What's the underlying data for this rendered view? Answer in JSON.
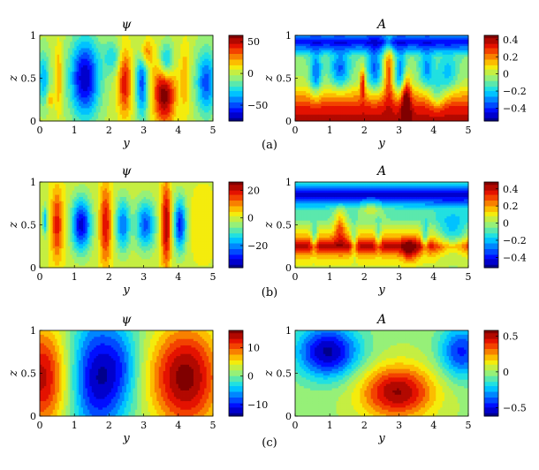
{
  "colors": {
    "blue": "#1010d8",
    "cyan": "#20d8e0",
    "green": "#b8f060",
    "yellow": "#f8f000",
    "orange": "#f89010",
    "red": "#e01010",
    "darkred": "#800000"
  },
  "chart_data": [
    {
      "type": "heatmap",
      "panel": "(a)",
      "field": "psi",
      "title": "ψ",
      "caption": "(a)",
      "xlabel": "y",
      "ylabel": "z",
      "xlim": [
        0,
        5
      ],
      "ylim": [
        0,
        1
      ],
      "xticks": [
        "0",
        "1",
        "2",
        "3",
        "4",
        "5"
      ],
      "yticks": [
        "0",
        "0.5",
        "1"
      ],
      "colorbar": {
        "range": [
          -75,
          60
        ],
        "ticks": [
          "50",
          "0",
          "−50"
        ],
        "tick_values": [
          50,
          0,
          -50
        ]
      },
      "blobs": [
        {
          "y": 0.1,
          "z": 0.5,
          "amp": -35,
          "sy": 0.12,
          "sz": 0.22
        },
        {
          "y": 0.3,
          "z": 0.25,
          "amp": 25,
          "sy": 0.06,
          "sz": 0.06
        },
        {
          "y": 0.55,
          "z": 0.5,
          "amp": 25,
          "sy": 0.08,
          "sz": 0.28
        },
        {
          "y": 1.3,
          "z": 0.5,
          "amp": -70,
          "sy": 0.3,
          "sz": 0.32
        },
        {
          "y": 2.1,
          "z": 0.75,
          "amp": -25,
          "sy": 0.18,
          "sz": 0.14
        },
        {
          "y": 2.45,
          "z": 0.45,
          "amp": 45,
          "sy": 0.14,
          "sz": 0.28
        },
        {
          "y": 2.95,
          "z": 0.45,
          "amp": -50,
          "sy": 0.12,
          "sz": 0.3
        },
        {
          "y": 3.05,
          "z": 0.8,
          "amp": 35,
          "sy": 0.14,
          "sz": 0.12
        },
        {
          "y": 3.65,
          "z": 0.68,
          "amp": -55,
          "sy": 0.15,
          "sz": 0.16
        },
        {
          "y": 3.6,
          "z": 0.35,
          "amp": 65,
          "sy": 0.22,
          "sz": 0.28
        },
        {
          "y": 4.2,
          "z": 0.5,
          "amp": 20,
          "sy": 0.1,
          "sz": 0.3
        },
        {
          "y": 4.8,
          "z": 0.45,
          "amp": -50,
          "sy": 0.2,
          "sz": 0.26
        }
      ]
    },
    {
      "type": "heatmap",
      "panel": "(a)",
      "field": "A",
      "title": "A",
      "xlabel": "y",
      "ylabel": "z",
      "xlim": [
        0,
        5
      ],
      "ylim": [
        0,
        1
      ],
      "xticks": [
        "0",
        "1",
        "2",
        "3",
        "4",
        "5"
      ],
      "yticks": [
        "0",
        "0.5",
        "1"
      ],
      "colorbar": {
        "range": [
          -0.55,
          0.45
        ],
        "ticks": [
          "0.4",
          "0.2",
          "0",
          "−0.2",
          "−0.4"
        ],
        "tick_values": [
          0.4,
          0.2,
          0,
          -0.2,
          -0.4
        ]
      },
      "base": [
        {
          "z0": 0.0,
          "z1": 0.15,
          "v0": 0.4,
          "v1": 0.32
        },
        {
          "z0": 0.15,
          "z1": 0.45,
          "v0": 0.32,
          "v1": 0.0
        },
        {
          "z0": 0.45,
          "z1": 0.75,
          "v0": 0.0,
          "v1": -0.08
        },
        {
          "z0": 0.75,
          "z1": 0.92,
          "v0": -0.08,
          "v1": -0.45
        },
        {
          "z0": 0.92,
          "z1": 1.0,
          "v0": -0.45,
          "v1": -0.3
        }
      ],
      "blobs": [
        {
          "y": 0.6,
          "z": 0.55,
          "amp": -0.3,
          "sy": 0.12,
          "sz": 0.18
        },
        {
          "y": 1.3,
          "z": 0.6,
          "amp": -0.3,
          "sy": 0.2,
          "sz": 0.15
        },
        {
          "y": 1.95,
          "z": 0.45,
          "amp": 0.35,
          "sy": 0.05,
          "sz": 0.12
        },
        {
          "y": 2.3,
          "z": 0.6,
          "amp": -0.3,
          "sy": 0.15,
          "sz": 0.18
        },
        {
          "y": 2.7,
          "z": 0.6,
          "amp": 0.3,
          "sy": 0.1,
          "sz": 0.25
        },
        {
          "y": 3.2,
          "z": 0.3,
          "amp": 0.35,
          "sy": 0.1,
          "sz": 0.2
        },
        {
          "y": 3.05,
          "z": 0.55,
          "amp": -0.3,
          "sy": 0.12,
          "sz": 0.18
        },
        {
          "y": 3.8,
          "z": 0.6,
          "amp": -0.25,
          "sy": 0.15,
          "sz": 0.15
        },
        {
          "y": 4.4,
          "z": 0.55,
          "amp": -0.2,
          "sy": 0.2,
          "sz": 0.15
        },
        {
          "y": 4.1,
          "z": 0.3,
          "amp": -0.2,
          "sy": 0.15,
          "sz": 0.12
        }
      ]
    },
    {
      "type": "heatmap",
      "panel": "(b)",
      "field": "psi",
      "title": "ψ",
      "caption": "(b)",
      "xlabel": "y",
      "ylabel": "z",
      "xlim": [
        0,
        5
      ],
      "ylim": [
        0,
        1
      ],
      "xticks": [
        "0",
        "1",
        "2",
        "3",
        "4",
        "5"
      ],
      "yticks": [
        "0",
        "0.5",
        "1"
      ],
      "colorbar": {
        "range": [
          -36,
          26
        ],
        "ticks": [
          "20",
          "0",
          "−20"
        ],
        "tick_values": [
          20,
          0,
          -20
        ]
      },
      "blobs": [
        {
          "y": 0.15,
          "z": 0.55,
          "amp": -18,
          "sy": 0.05,
          "sz": 0.12
        },
        {
          "y": 0.5,
          "z": 0.5,
          "amp": 18,
          "sy": 0.12,
          "sz": 0.3
        },
        {
          "y": 1.2,
          "z": 0.5,
          "amp": -32,
          "sy": 0.2,
          "sz": 0.22
        },
        {
          "y": 1.9,
          "z": 0.5,
          "amp": 20,
          "sy": 0.12,
          "sz": 0.32
        },
        {
          "y": 2.4,
          "z": 0.5,
          "amp": -22,
          "sy": 0.15,
          "sz": 0.22
        },
        {
          "y": 3.05,
          "z": 0.5,
          "amp": -24,
          "sy": 0.2,
          "sz": 0.2
        },
        {
          "y": 3.65,
          "z": 0.5,
          "amp": 24,
          "sy": 0.1,
          "sz": 0.35
        },
        {
          "y": 4.05,
          "z": 0.5,
          "amp": -28,
          "sy": 0.13,
          "sz": 0.22
        },
        {
          "y": 4.7,
          "z": 0.5,
          "amp": 3,
          "sy": 0.3,
          "sz": 0.3
        }
      ]
    },
    {
      "type": "heatmap",
      "panel": "(b)",
      "field": "A",
      "title": "A",
      "xlabel": "y",
      "ylabel": "z",
      "xlim": [
        0,
        5
      ],
      "ylim": [
        0,
        1
      ],
      "xticks": [
        "0",
        "1",
        "2",
        "3",
        "4",
        "5"
      ],
      "yticks": [
        "0",
        "0.5",
        "1"
      ],
      "colorbar": {
        "range": [
          -0.52,
          0.48
        ],
        "ticks": [
          "0.4",
          "0.2",
          "0",
          "−0.2",
          "−0.4"
        ],
        "tick_values": [
          0.4,
          0.2,
          0,
          -0.2,
          -0.4
        ]
      },
      "base": [
        {
          "z0": 0.0,
          "z1": 0.12,
          "v0": 0.05,
          "v1": 0.15
        },
        {
          "z0": 0.12,
          "z1": 0.25,
          "v0": 0.15,
          "v1": 0.42
        },
        {
          "z0": 0.25,
          "z1": 0.38,
          "v0": 0.42,
          "v1": 0.15
        },
        {
          "z0": 0.38,
          "z1": 0.55,
          "v0": 0.15,
          "v1": -0.05
        },
        {
          "z0": 0.55,
          "z1": 0.68,
          "v0": -0.05,
          "v1": -0.1
        },
        {
          "z0": 0.68,
          "z1": 0.85,
          "v0": -0.1,
          "v1": -0.5
        },
        {
          "z0": 0.85,
          "z1": 1.0,
          "v0": -0.5,
          "v1": -0.1
        }
      ],
      "blobs": [
        {
          "y": 0.55,
          "z": 0.35,
          "amp": -0.25,
          "sy": 0.06,
          "sz": 0.12
        },
        {
          "y": 1.3,
          "z": 0.5,
          "amp": 0.25,
          "sy": 0.12,
          "sz": 0.15
        },
        {
          "y": 1.7,
          "z": 0.3,
          "amp": -0.25,
          "sy": 0.06,
          "sz": 0.12
        },
        {
          "y": 2.4,
          "z": 0.35,
          "amp": -0.2,
          "sy": 0.06,
          "sz": 0.12
        },
        {
          "y": 3.3,
          "z": 0.2,
          "amp": 0.2,
          "sy": 0.15,
          "sz": 0.1
        },
        {
          "y": 3.75,
          "z": 0.35,
          "amp": -0.25,
          "sy": 0.07,
          "sz": 0.12
        },
        {
          "y": 4.55,
          "z": 0.35,
          "amp": -0.3,
          "sy": 0.35,
          "sz": 0.18
        },
        {
          "y": 2.2,
          "z": 0.7,
          "amp": 0.15,
          "sy": 0.25,
          "sz": 0.08
        }
      ]
    },
    {
      "type": "heatmap",
      "panel": "(c)",
      "field": "psi",
      "title": "ψ",
      "caption": "(c)",
      "xlabel": "y",
      "ylabel": "z",
      "xlim": [
        0,
        5
      ],
      "ylim": [
        0,
        1
      ],
      "xticks": [
        "0",
        "1",
        "2",
        "3",
        "4",
        "5"
      ],
      "yticks": [
        "0",
        "0.5",
        "1"
      ],
      "colorbar": {
        "range": [
          -14,
          16
        ],
        "ticks": [
          "10",
          "0",
          "−10"
        ],
        "tick_values": [
          10,
          0,
          -10
        ]
      },
      "blobs": [
        {
          "y": 0.05,
          "z": 0.45,
          "amp": 14,
          "sy": 0.55,
          "sz": 0.45
        },
        {
          "y": 1.7,
          "z": 0.45,
          "amp": -13,
          "sy": 0.55,
          "sz": 0.45
        },
        {
          "y": 2.4,
          "z": 0.6,
          "amp": -4,
          "sy": 0.35,
          "sz": 0.3
        },
        {
          "y": 4.2,
          "z": 0.45,
          "amp": 16,
          "sy": 0.75,
          "sz": 0.45
        }
      ]
    },
    {
      "type": "heatmap",
      "panel": "(c)",
      "field": "A",
      "title": "A",
      "xlabel": "y",
      "ylabel": "z",
      "xlim": [
        0,
        5
      ],
      "ylim": [
        0,
        1
      ],
      "xticks": [
        "0",
        "1",
        "2",
        "3",
        "4",
        "5"
      ],
      "yticks": [
        "0",
        "0.5",
        "1"
      ],
      "colorbar": {
        "range": [
          -0.62,
          0.58
        ],
        "ticks": [
          "0.5",
          "0",
          "−0.5"
        ],
        "tick_values": [
          0.5,
          0,
          -0.5
        ]
      },
      "blobs": [
        {
          "y": 0.95,
          "z": 0.75,
          "amp": -0.6,
          "sy": 0.65,
          "sz": 0.22
        },
        {
          "y": 2.95,
          "z": 0.28,
          "amp": 0.55,
          "sy": 0.75,
          "sz": 0.22
        },
        {
          "y": 4.8,
          "z": 0.75,
          "amp": -0.45,
          "sy": 0.45,
          "sz": 0.22
        }
      ]
    }
  ]
}
